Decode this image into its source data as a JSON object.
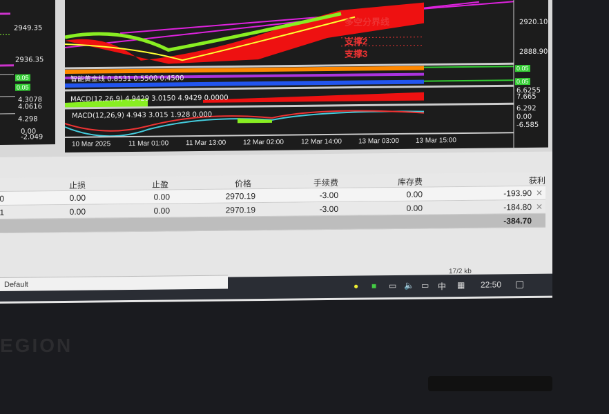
{
  "chart": {
    "left_axis": [
      "2949.35",
      "2936.35",
      "0.05",
      "0.05",
      "4.3078",
      "4.0616",
      "4.298",
      "0.00",
      "-2.049"
    ],
    "right_axis": [
      "2920.10",
      "2888.90",
      "0.05",
      "0.05",
      "6.6255",
      "7.665",
      "6.292",
      "0.00",
      "-6.585"
    ],
    "labels": {
      "divider": "多空分界线",
      "support2": "支撑2",
      "support3": "支撑3"
    },
    "indicator1": "智能黄金线 0.8531 0.5500 0.4500",
    "indicator2": "MACD(12,26,9) 4.9429 3.0150 4.9429 0.0000",
    "indicator3": "MACD(12,26,9) 4.943 3.015 1.928 0.000",
    "time_labels": [
      "10 Mar 2025",
      "11 Mar 01:00",
      "11 Mar 13:00",
      "12 Mar 02:00",
      "12 Mar 14:00",
      "13 Mar 03:00",
      "13 Mar 15:00"
    ]
  },
  "table": {
    "headers": [
      "止损",
      "止盈",
      "价格",
      "手续费",
      "库存费",
      "获利"
    ],
    "rows": [
      {
        "id": "0",
        "sl": "0.00",
        "tp": "0.00",
        "price": "2970.19",
        "commission": "-3.00",
        "swap": "0.00",
        "profit": "-193.90"
      },
      {
        "id": "1",
        "sl": "0.00",
        "tp": "0.00",
        "price": "2970.19",
        "commission": "-3.00",
        "swap": "0.00",
        "profit": "-184.80"
      }
    ],
    "total": "-384.70"
  },
  "status": {
    "profile": "Default",
    "traffic": "17/2 kb"
  },
  "taskbar": {
    "ime": "中",
    "time": "22:50"
  },
  "brand": "EGION"
}
